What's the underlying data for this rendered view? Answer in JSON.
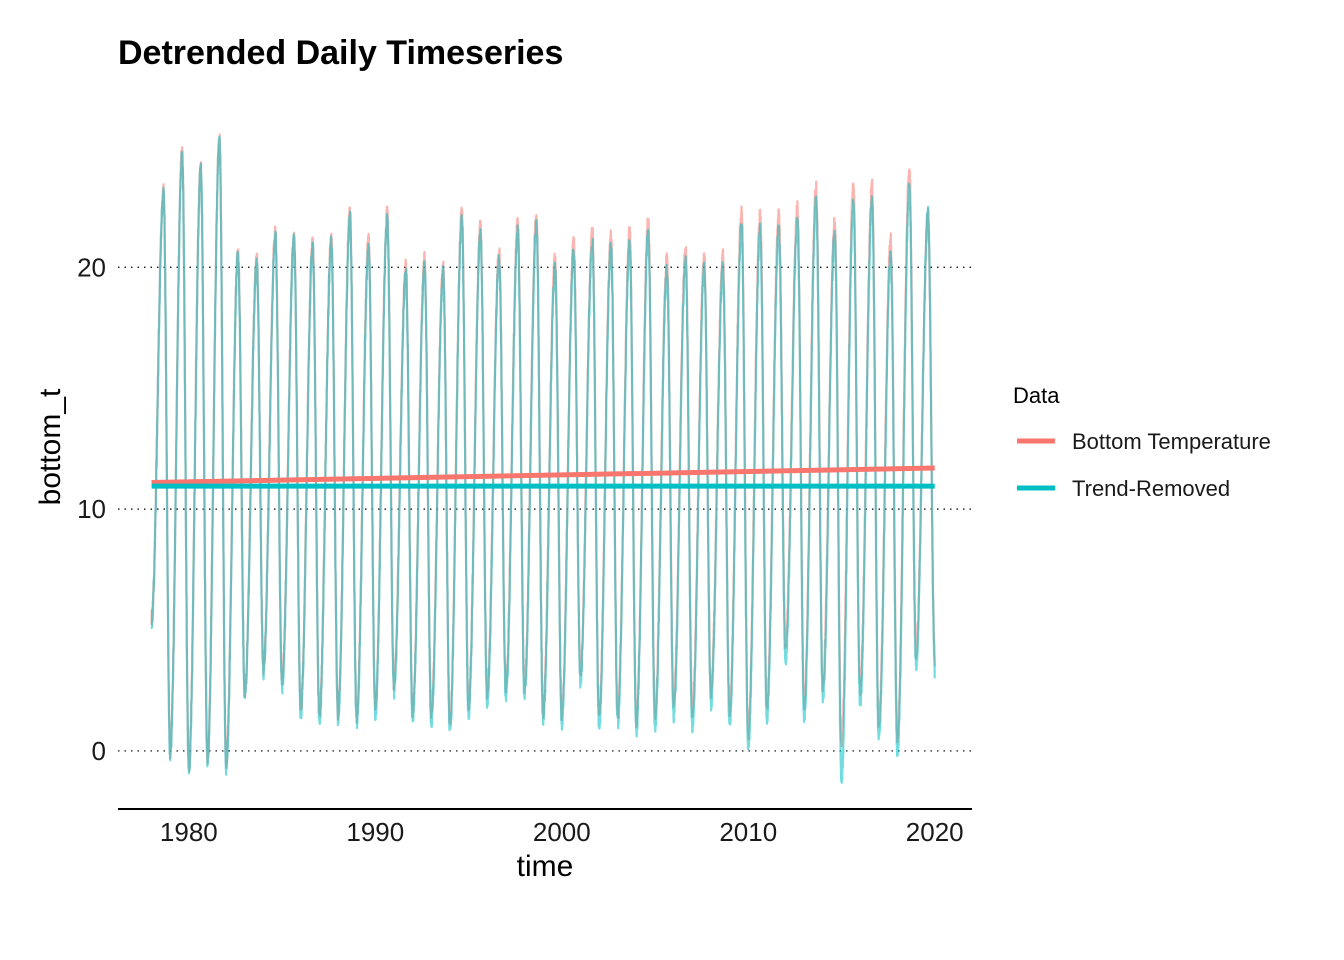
{
  "chart_data": {
    "type": "line",
    "title": "Detrended Daily Timeseries",
    "xlabel": "time",
    "ylabel": "bottom_t",
    "xlim": [
      1976.2,
      2022.0
    ],
    "ylim": [
      -2.4,
      27.0
    ],
    "x_ticks": [
      1980,
      1990,
      2000,
      2010,
      2020
    ],
    "x_tick_labels": [
      "1980",
      "1990",
      "2000",
      "2010",
      "2020"
    ],
    "y_ticks": [
      0,
      10,
      20
    ],
    "y_tick_labels": [
      "0",
      "10",
      "20"
    ],
    "grid": "horizontal dotted at y ticks",
    "legend": {
      "title": "Data",
      "placement": "right",
      "entries": [
        {
          "label": "Bottom Temperature",
          "color": "#F8766D"
        },
        {
          "label": "Trend-Removed",
          "color": "#00BFC4"
        }
      ]
    },
    "series": [
      {
        "name": "Bottom Temperature",
        "color": "#F8766D",
        "style": "daily seasonal cycle, semi-transparent",
        "start": 1978.0,
        "end": 2020.0,
        "annual_peaks": [
          23.1,
          24.8,
          24.1,
          25.3,
          20.6,
          20.3,
          21.4,
          21.3,
          21.0,
          21.2,
          22.3,
          21.1,
          22.2,
          20.0,
          20.3,
          20.0,
          22.2,
          21.7,
          20.6,
          21.8,
          22.1,
          20.3,
          21.0,
          21.4,
          21.2,
          21.4,
          21.9,
          20.3,
          20.7,
          20.4,
          20.4,
          22.3,
          22.1,
          22.1,
          22.4,
          23.3,
          21.9,
          23.3,
          23.3,
          21.1,
          23.9,
          22.1
        ],
        "annual_troughs": [
          5.5,
          0.0,
          -0.6,
          -0.2,
          -0.5,
          2.5,
          3.5,
          2.9,
          1.7,
          1.5,
          1.6,
          1.5,
          1.9,
          2.8,
          1.7,
          1.6,
          1.2,
          2.0,
          2.5,
          2.7,
          2.7,
          1.7,
          1.6,
          3.3,
          1.5,
          1.6,
          1.3,
          1.6,
          2.0,
          1.6,
          2.5,
          1.7,
          0.8,
          2.0,
          4.4,
          2.0,
          2.8,
          0.3,
          2.6,
          1.1,
          0.6,
          4.1
        ]
      },
      {
        "name": "Trend-Removed",
        "color": "#00BFC4",
        "style": "daily seasonal cycle, semi-transparent",
        "start": 1978.0,
        "end": 2020.0,
        "annual_peaks": [
          23.0,
          24.6,
          24.0,
          25.2,
          20.4,
          20.1,
          21.2,
          21.1,
          20.8,
          21.0,
          22.0,
          20.8,
          21.9,
          19.7,
          20.0,
          19.7,
          21.9,
          21.3,
          20.3,
          21.4,
          21.7,
          19.9,
          20.6,
          21.0,
          20.8,
          20.9,
          21.4,
          19.8,
          20.2,
          19.9,
          19.9,
          21.7,
          21.5,
          21.5,
          21.8,
          22.7,
          21.3,
          22.6,
          22.6,
          20.4,
          23.2,
          22.3
        ],
        "annual_troughs": [
          5.4,
          -0.1,
          -0.8,
          -0.4,
          -0.7,
          2.3,
          3.3,
          2.7,
          1.5,
          1.3,
          1.4,
          1.2,
          1.6,
          2.5,
          1.4,
          1.2,
          0.9,
          1.6,
          2.1,
          2.3,
          2.3,
          1.3,
          1.2,
          2.9,
          1.1,
          1.2,
          0.9,
          1.1,
          1.5,
          1.1,
          2.0,
          1.2,
          0.2,
          1.4,
          3.8,
          1.4,
          2.2,
          -1.1,
          2.0,
          0.5,
          -0.1,
          3.6
        ]
      },
      {
        "name": "Bottom Temperature",
        "kind": "trend line",
        "color": "#F8766D",
        "x": [
          1978.0,
          2020.0
        ],
        "y": [
          11.1,
          11.7
        ]
      },
      {
        "name": "Trend-Removed",
        "kind": "mean line",
        "color": "#00BFC4",
        "x": [
          1978.0,
          2020.0
        ],
        "y": [
          10.95,
          10.95
        ]
      }
    ]
  }
}
